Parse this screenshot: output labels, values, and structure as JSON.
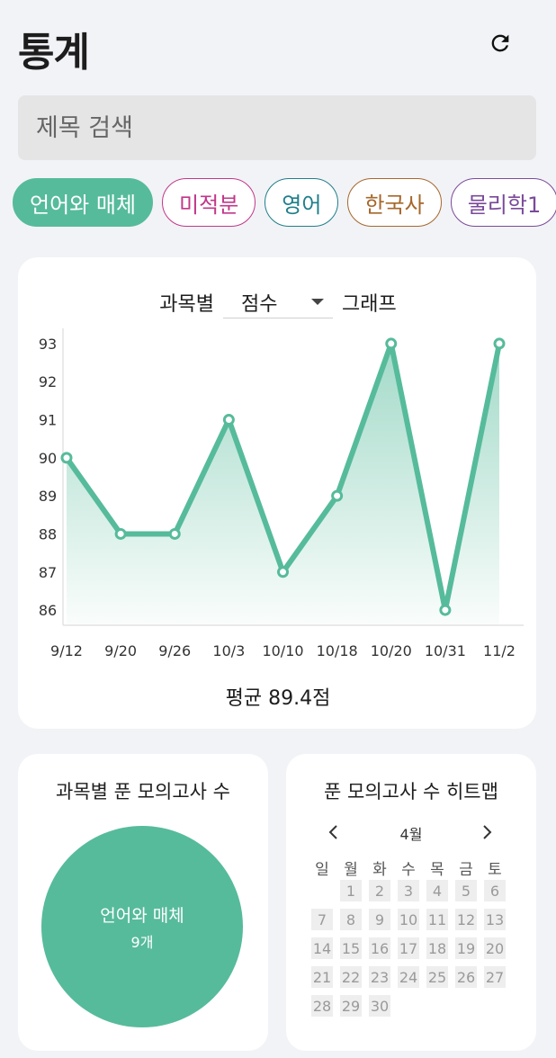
{
  "header": {
    "title": "통계"
  },
  "search": {
    "placeholder": "제목 검색"
  },
  "subjects": [
    {
      "label": "언어와 매체",
      "color": "#56bb9b",
      "selected": true
    },
    {
      "label": "미적분",
      "color": "#c2378a",
      "selected": false
    },
    {
      "label": "영어",
      "color": "#1f7f8a",
      "selected": false
    },
    {
      "label": "한국사",
      "color": "#a6672c",
      "selected": false
    },
    {
      "label": "물리학1",
      "color": "#7a4a9a",
      "selected": false
    }
  ],
  "graph": {
    "prefix": "과목별",
    "selected_metric": "점수",
    "suffix": "그래프",
    "average_label": "평균",
    "average_value": "89.4점"
  },
  "chart_data": {
    "type": "area",
    "x": [
      "9/12",
      "9/20",
      "9/26",
      "10/3",
      "10/10",
      "10/18",
      "10/20",
      "10/31",
      "11/2"
    ],
    "values": [
      90,
      88,
      88,
      91,
      87,
      89,
      93,
      86,
      93
    ],
    "ylim": [
      85.6,
      93.4
    ],
    "yticks": [
      86,
      87,
      88,
      89,
      90,
      91,
      92,
      93
    ],
    "color": "#56bb9b",
    "grid": false
  },
  "pie_card": {
    "title": "과목별 푼 모의고사 수",
    "slices": [
      {
        "name": "언어와 매체",
        "count_label": "9개",
        "value": 9,
        "color": "#56bb9b"
      }
    ]
  },
  "heatmap_card": {
    "title": "푼 모의고사 수 히트맵",
    "month": "4월",
    "weekdays": [
      "일",
      "월",
      "화",
      "수",
      "목",
      "금",
      "토"
    ],
    "first_weekday": 1,
    "days": 30
  }
}
